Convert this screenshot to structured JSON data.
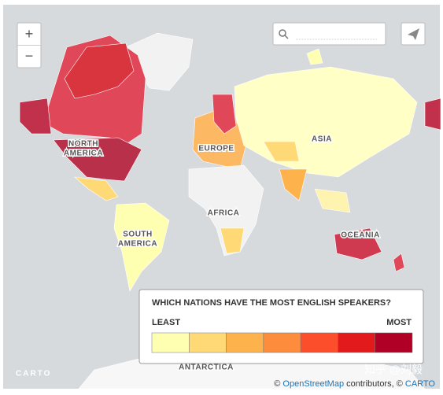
{
  "controls": {
    "zoom_in": "+",
    "zoom_out": "−"
  },
  "map_labels": {
    "north_america": [
      "NORTH",
      "AMERICA"
    ],
    "europe": "EUROPE",
    "asia": "ASIA",
    "africa": "AFRICA",
    "south_america": [
      "SOUTH",
      "AMERICA"
    ],
    "oceania": "OCEANIA",
    "antarctica": "ANTARCTICA"
  },
  "legend": {
    "title": "WHICH NATIONS HAVE THE MOST ENGLISH SPEAKERS?",
    "low": "LEAST",
    "high": "MOST",
    "colors": [
      "#ffffb2",
      "#fed976",
      "#feb24c",
      "#fd8d3c",
      "#fc4e2a",
      "#e31a1c",
      "#b10026"
    ]
  },
  "logo": "CARTO",
  "attribution": [
    "©",
    "OpenStreetMap",
    "contributors, ©",
    "CARTO"
  ],
  "watermark": "知乎 @刘毅"
}
